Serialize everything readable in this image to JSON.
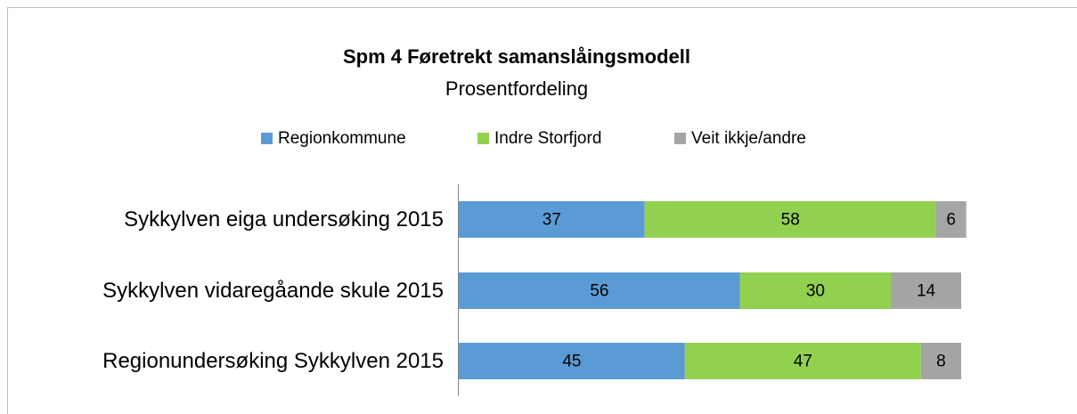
{
  "chart_data": {
    "type": "stacked-bar-horizontal",
    "title": "Spm 4 Føretrekt samanslåingsmodell",
    "subtitle": "Prosentfordeling",
    "categories": [
      "Sykkylven eiga undersøking 2015",
      "Sykkylven vidaregåande skule 2015",
      "Regionundersøking Sykkylven 2015"
    ],
    "series": [
      {
        "name": "Regionkommune",
        "color": "#5b9bd5",
        "values": [
          37,
          56,
          45
        ]
      },
      {
        "name": "Indre Storfjord",
        "color": "#92d050",
        "values": [
          58,
          30,
          47
        ]
      },
      {
        "name": "Veit ikkje/andre",
        "color": "#a5a5a5",
        "values": [
          6,
          14,
          8
        ]
      }
    ],
    "legend": "top"
  }
}
